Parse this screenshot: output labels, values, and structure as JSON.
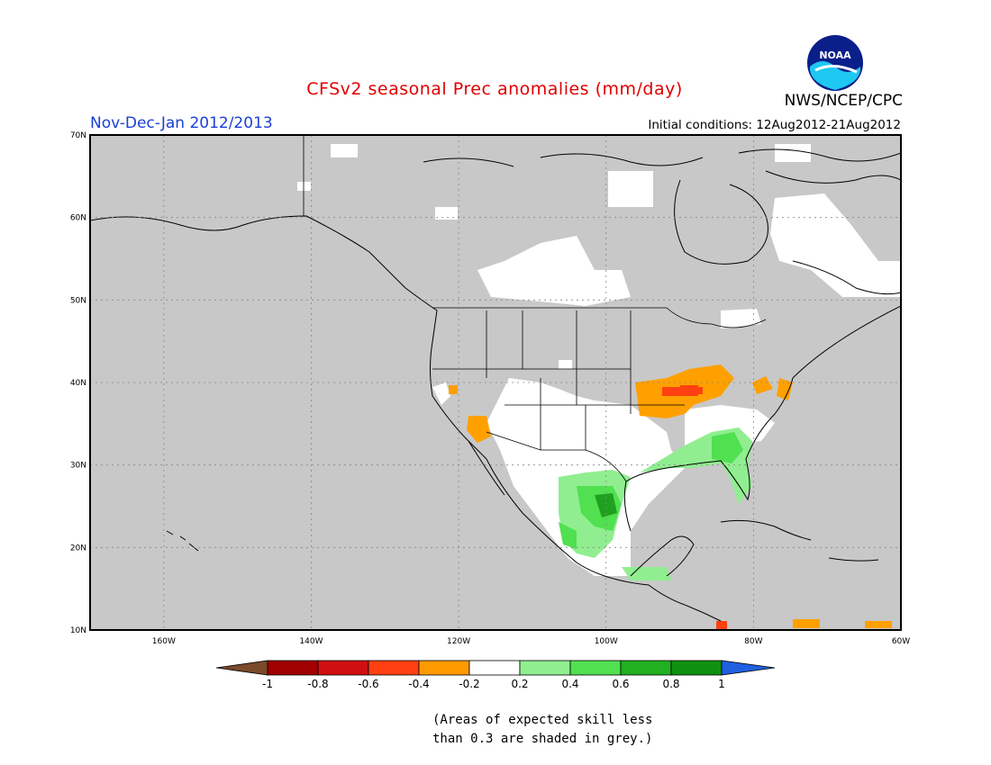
{
  "title": "CFSv2 seasonal Prec anomalies (mm/day)",
  "period": "Nov-Dec-Jan 2012/2013",
  "initial_conditions": "Initial conditions: 12Aug2012-21Aug2012",
  "agency": "NWS/NCEP/CPC",
  "logo_text": "NOAA",
  "note_line1": "(Areas of expected skill less",
  "note_line2": "than 0.3 are shaded in grey.)",
  "map": {
    "lon_range": [
      -170,
      -60
    ],
    "lat_range": [
      10,
      70
    ],
    "background_color": "#c8c8c8",
    "lat_ticks": [
      {
        "value": 70,
        "label": "70N"
      },
      {
        "value": 60,
        "label": "60N"
      },
      {
        "value": 50,
        "label": "50N"
      },
      {
        "value": 40,
        "label": "40N"
      },
      {
        "value": 30,
        "label": "30N"
      },
      {
        "value": 20,
        "label": "20N"
      },
      {
        "value": 10,
        "label": "10N"
      }
    ],
    "lon_ticks": [
      {
        "value": -160,
        "label": "160W"
      },
      {
        "value": -140,
        "label": "140W"
      },
      {
        "value": -120,
        "label": "120W"
      },
      {
        "value": -100,
        "label": "100W"
      },
      {
        "value": -80,
        "label": "80W"
      },
      {
        "value": -60,
        "label": "60W"
      }
    ]
  },
  "colorbar": {
    "labels": [
      "-1",
      "-0.8",
      "-0.6",
      "-0.4",
      "-0.2",
      "0.2",
      "0.4",
      "0.6",
      "0.8",
      "1"
    ],
    "colors": {
      "lt_-1": "#7a4a2a",
      "-1_-0.8": "#a00000",
      "-0.8_-0.6": "#d01010",
      "-0.6_-0.4": "#ff4010",
      "-0.4_-0.2": "#ff9a00",
      "-0.2_0.2": "#ffffff",
      "0.2_0.4": "#90ee90",
      "0.4_0.6": "#50e050",
      "0.6_0.8": "#20b020",
      "0.8_1": "#109010",
      "gt_1": "#2060e0"
    }
  }
}
